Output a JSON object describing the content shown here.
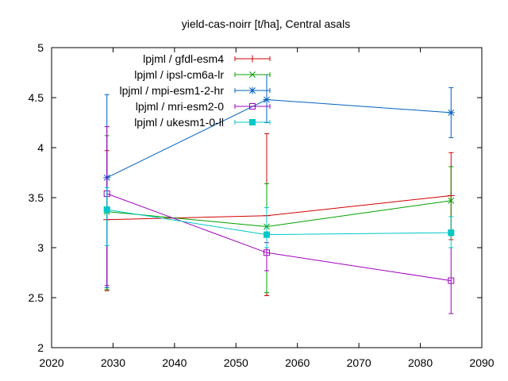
{
  "chart_data": {
    "type": "line",
    "title": "yield-cas-noirr [t/ha], Central asals",
    "xlabel": "",
    "ylabel": "",
    "xlim": [
      2020,
      2090
    ],
    "ylim": [
      2,
      5
    ],
    "xticks": [
      2020,
      2030,
      2040,
      2050,
      2060,
      2070,
      2080,
      2090
    ],
    "yticks": [
      2,
      2.5,
      3,
      3.5,
      4,
      4.5,
      5
    ],
    "grid": false,
    "legend_position": "top-left",
    "x": [
      2029,
      2055,
      2085
    ],
    "series": [
      {
        "name": "lpjml / gfdl-esm4",
        "color": "#d00000",
        "marker": "plus",
        "values": [
          3.28,
          3.32,
          3.52
        ],
        "error_low": [
          2.57,
          2.52,
          3.08
        ],
        "error_high": [
          3.97,
          4.14,
          3.95
        ]
      },
      {
        "name": "lpjml / ipsl-cm6a-lr",
        "color": "#00a000",
        "marker": "cross",
        "values": [
          3.36,
          3.21,
          3.47
        ],
        "error_low": [
          2.58,
          2.55,
          3.12
        ],
        "error_high": [
          4.12,
          3.64,
          3.81
        ]
      },
      {
        "name": "lpjml / mpi-esm1-2-hr",
        "color": "#0060c0",
        "marker": "star",
        "values": [
          3.7,
          4.48,
          4.35
        ],
        "error_low": [
          2.6,
          4.25,
          4.1
        ],
        "error_high": [
          4.53,
          4.73,
          4.6
        ]
      },
      {
        "name": "lpjml / mri-esm2-0",
        "color": "#a000c0",
        "marker": "box",
        "values": [
          3.54,
          2.95,
          2.67
        ],
        "error_low": [
          2.62,
          2.77,
          2.34
        ],
        "error_high": [
          4.21,
          3.05,
          3.0
        ]
      },
      {
        "name": "lpjml / ukesm1-0-ll",
        "color": "#00c8c8",
        "marker": "filled-box",
        "values": [
          3.38,
          3.13,
          3.15
        ],
        "error_low": [
          3.02,
          3.0,
          3.0
        ],
        "error_high": [
          3.6,
          3.4,
          3.31
        ]
      }
    ]
  }
}
